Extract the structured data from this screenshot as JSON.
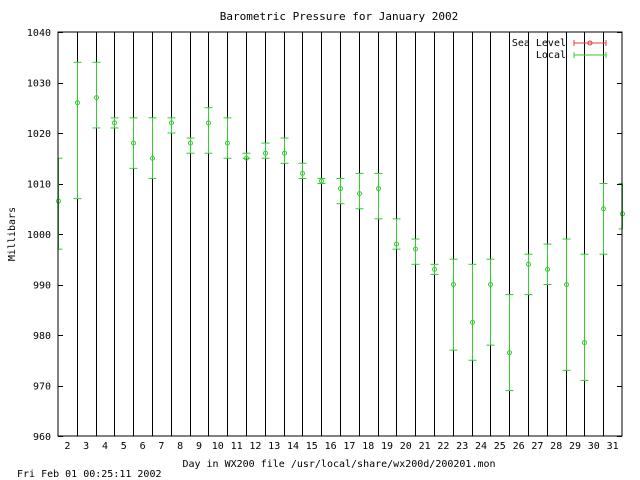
{
  "chart_data": {
    "type": "errorbar",
    "title": "Barometric Pressure for January 2002",
    "xlabel": "Day in WX200 file /usr/local/share/wx200d/200201.mon",
    "ylabel": "Millibars",
    "xlim": [
      1.5,
      31.5
    ],
    "ylim": [
      960,
      1040
    ],
    "yticks": [
      960,
      970,
      980,
      990,
      1000,
      1010,
      1020,
      1030,
      1040
    ],
    "xticks": [
      2,
      3,
      4,
      5,
      6,
      7,
      8,
      9,
      10,
      11,
      12,
      13,
      14,
      15,
      16,
      17,
      18,
      19,
      20,
      21,
      22,
      23,
      24,
      25,
      26,
      27,
      28,
      29,
      30,
      31
    ],
    "grid": "vertical",
    "legend": "top-right",
    "colors": {
      "Sea Level": "#e04040",
      "Local": "#33cc33"
    },
    "series": [
      {
        "name": "Sea Level",
        "points": []
      },
      {
        "name": "Local",
        "points": [
          {
            "x": 1.5,
            "y": 1006.5,
            "low": 997,
            "high": 1015
          },
          {
            "x": 2.5,
            "y": 1026,
            "low": 1007,
            "high": 1034
          },
          {
            "x": 3.5,
            "y": 1027,
            "low": 1021,
            "high": 1034
          },
          {
            "x": 4.5,
            "y": 1022,
            "low": 1021,
            "high": 1023
          },
          {
            "x": 5.5,
            "y": 1018,
            "low": 1013,
            "high": 1023
          },
          {
            "x": 6.5,
            "y": 1015,
            "low": 1011,
            "high": 1023
          },
          {
            "x": 7.5,
            "y": 1022,
            "low": 1020,
            "high": 1023
          },
          {
            "x": 8.5,
            "y": 1018,
            "low": 1016,
            "high": 1019
          },
          {
            "x": 9.5,
            "y": 1022,
            "low": 1016,
            "high": 1025
          },
          {
            "x": 10.5,
            "y": 1018,
            "low": 1015,
            "high": 1023
          },
          {
            "x": 11.5,
            "y": 1015,
            "low": 1015,
            "high": 1016
          },
          {
            "x": 12.5,
            "y": 1016,
            "low": 1015,
            "high": 1018
          },
          {
            "x": 13.5,
            "y": 1016,
            "low": 1014,
            "high": 1019
          },
          {
            "x": 14.5,
            "y": 1012,
            "low": 1011,
            "high": 1014
          },
          {
            "x": 15.5,
            "y": 1010.5,
            "low": 1010,
            "high": 1011
          },
          {
            "x": 16.5,
            "y": 1009,
            "low": 1006,
            "high": 1011
          },
          {
            "x": 17.5,
            "y": 1008,
            "low": 1005,
            "high": 1012
          },
          {
            "x": 18.5,
            "y": 1009,
            "low": 1003,
            "high": 1012
          },
          {
            "x": 19.5,
            "y": 998,
            "low": 997,
            "high": 1003
          },
          {
            "x": 20.5,
            "y": 997,
            "low": 994,
            "high": 999
          },
          {
            "x": 21.5,
            "y": 993,
            "low": 992,
            "high": 994
          },
          {
            "x": 22.5,
            "y": 990,
            "low": 977,
            "high": 995
          },
          {
            "x": 23.5,
            "y": 982.5,
            "low": 975,
            "high": 994
          },
          {
            "x": 24.5,
            "y": 990,
            "low": 978,
            "high": 995
          },
          {
            "x": 25.5,
            "y": 976.5,
            "low": 969,
            "high": 988
          },
          {
            "x": 26.5,
            "y": 994,
            "low": 988,
            "high": 996
          },
          {
            "x": 27.5,
            "y": 993,
            "low": 990,
            "high": 998
          },
          {
            "x": 28.5,
            "y": 990,
            "low": 973,
            "high": 999
          },
          {
            "x": 29.5,
            "y": 978.5,
            "low": 971,
            "high": 996
          },
          {
            "x": 30.5,
            "y": 1005,
            "low": 996,
            "high": 1010
          },
          {
            "x": 31.5,
            "y": 1004,
            "low": 1001,
            "high": 1010
          }
        ]
      }
    ]
  },
  "footer": {
    "timestamp": "Fri Feb 01 00:25:11 2002"
  }
}
